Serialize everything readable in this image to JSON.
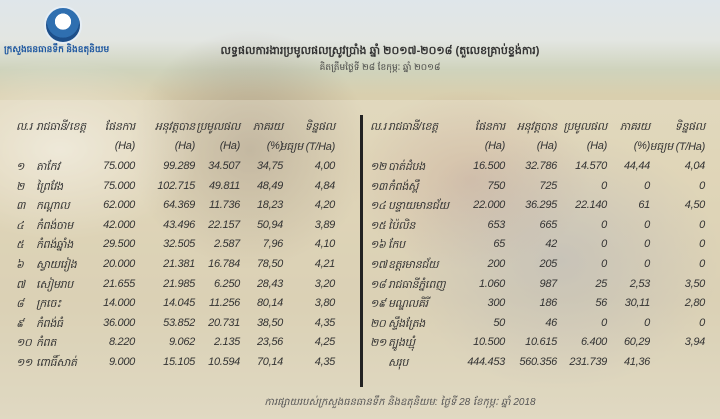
{
  "header": {
    "logo_text": "ក្រសួងធនធានទឹក និងឧតុនិយម",
    "title": "លទ្ធផលការងារប្រមូលផលស្រូវប្រាំង ឆ្នាំ ២០១៧-២០១៨ (តួលេខគ្រាប់ខ្ទង់ការ)",
    "subtitle": "គិតត្រឹមថ្ងៃទី ២៨ ខែកុម្ភៈ ឆ្នាំ ២០១៨"
  },
  "columns": {
    "no": "ល.រ",
    "province": "រាជធានី/ខេត្ត",
    "plan": "ផែនការ",
    "actual": "អនុវត្តបាន",
    "harvest": "ប្រមូលផល",
    "percent": "ភាគរយ",
    "yield": "ទិន្នផល",
    "plan_unit": "(Ha)",
    "actual_unit": "(Ha)",
    "harvest_unit": "(Ha)",
    "percent_unit": "(%)",
    "yield_unit": "មធ្យម (T/Ha)"
  },
  "left_rows": [
    [
      "១",
      "តាកែវ",
      "75.000",
      "99.289",
      "34.507",
      "34,75",
      "4,00"
    ],
    [
      "២",
      "ព្រៃវែង",
      "75.000",
      "102.715",
      "49.811",
      "48,49",
      "4,84"
    ],
    [
      "៣",
      "កណ្ដាល",
      "62.000",
      "64.369",
      "11.736",
      "18,23",
      "4,20"
    ],
    [
      "៤",
      "កំពង់ចាម",
      "42.000",
      "43.496",
      "22.157",
      "50,94",
      "3,89"
    ],
    [
      "៥",
      "កំពង់ឆ្នាំង",
      "29.500",
      "32.505",
      "2.587",
      "7,96",
      "4,10"
    ],
    [
      "៦",
      "ស្វាយរៀង",
      "20.000",
      "21.381",
      "16.784",
      "78,50",
      "4,21"
    ],
    [
      "៧",
      "សៀមរាប",
      "21.655",
      "21.985",
      "6.250",
      "28,43",
      "3,20"
    ],
    [
      "៨",
      "ក្រចេះ",
      "14.000",
      "14.045",
      "11.256",
      "80,14",
      "3,80"
    ],
    [
      "៩",
      "កំពង់ធំ",
      "36.000",
      "53.852",
      "20.731",
      "38,50",
      "4,35"
    ],
    [
      "១០",
      "កំពត",
      "8.220",
      "9.062",
      "2.135",
      "23,56",
      "4,25"
    ],
    [
      "១១",
      "ពោធិ៍សាត់",
      "9.000",
      "15.105",
      "10.594",
      "70,14",
      "4,35"
    ]
  ],
  "right_rows": [
    [
      "១២",
      "បាត់ដំបង",
      "16.500",
      "32.786",
      "14.570",
      "44,44",
      "4,04"
    ],
    [
      "១៣",
      "កំពង់ស្ពឺ",
      "750",
      "725",
      "0",
      "0",
      "0"
    ],
    [
      "១៤",
      "បន្ទាយមានជ័យ",
      "22.000",
      "36.295",
      "22.140",
      "61",
      "4,50"
    ],
    [
      "១៥",
      "ប៉ៃលិន",
      "653",
      "665",
      "0",
      "0",
      "0"
    ],
    [
      "១៦",
      "កែប",
      "65",
      "42",
      "0",
      "0",
      "0"
    ],
    [
      "១៧",
      "ឧត្ដរមានជ័យ",
      "200",
      "205",
      "0",
      "0",
      "0"
    ],
    [
      "១៨",
      "រាជធានីភ្នំពេញ",
      "1.060",
      "987",
      "25",
      "2,53",
      "3,50"
    ],
    [
      "១៩",
      "មណ្ឌលគិរី",
      "300",
      "186",
      "56",
      "30,11",
      "2,80"
    ],
    [
      "២០",
      "ស្ទឹងត្រែង",
      "50",
      "46",
      "0",
      "0",
      "0"
    ],
    [
      "២១",
      "ត្បូងឃ្មុំ",
      "10.500",
      "10.615",
      "6.400",
      "60,29",
      "3,94"
    ],
    [
      "",
      "សរុប",
      "444.453",
      "560.356",
      "231.739",
      "41,36",
      ""
    ]
  ],
  "footer": "ការផ្សាយរបស់ក្រសួងធនធានទឹក និងឧតុនិយម: ថ្ងៃទី 28 ខែកុម្ភៈ ឆ្នាំ 2018"
}
